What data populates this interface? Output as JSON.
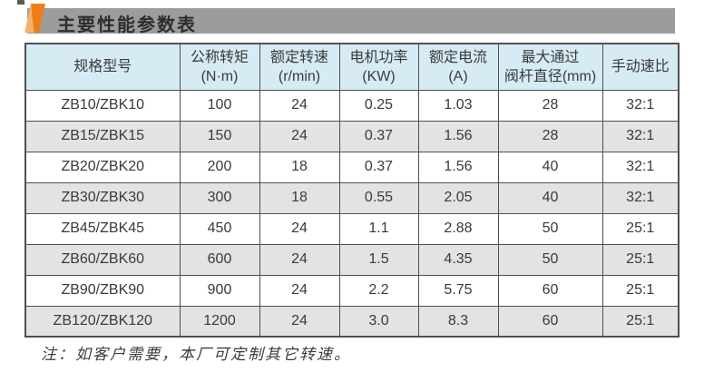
{
  "page": {
    "title": "主要性能参数表",
    "note": "注：如客户需要，本厂可定制其它转速。"
  },
  "colors": {
    "title_bar_gray": "#9c9c9c",
    "icon_orange": "#ee7f17",
    "icon_light_orange": "#f6b069",
    "header_blue": "#d6ebf4",
    "row_alt_gray": "#e3e3e3",
    "table_border": "#4f4f4f",
    "text_dark": "#3a3a3a"
  },
  "table": {
    "columns": [
      {
        "label": "规格型号",
        "unit": ""
      },
      {
        "label": "公称转矩",
        "unit": "(N·m)"
      },
      {
        "label": "额定转速",
        "unit": "(r/min)"
      },
      {
        "label": "电机功率",
        "unit": "(KW)"
      },
      {
        "label": "额定电流",
        "unit": "(A)"
      },
      {
        "label": "最大通过",
        "unit": "阀杆直径(mm)"
      },
      {
        "label": "手动速比",
        "unit": ""
      }
    ],
    "rows": [
      [
        "ZB10/ZBK10",
        "100",
        "24",
        "0.25",
        "1.03",
        "28",
        "32:1"
      ],
      [
        "ZB15/ZBK15",
        "150",
        "24",
        "0.37",
        "1.56",
        "28",
        "32:1"
      ],
      [
        "ZB20/ZBK20",
        "200",
        "18",
        "0.37",
        "1.56",
        "40",
        "32:1"
      ],
      [
        "ZB30/ZBK30",
        "300",
        "18",
        "0.55",
        "2.05",
        "40",
        "32:1"
      ],
      [
        "ZB45/ZBK45",
        "450",
        "24",
        "1.1",
        "2.88",
        "50",
        "25:1"
      ],
      [
        "ZB60/ZBK60",
        "600",
        "24",
        "1.5",
        "4.35",
        "50",
        "25:1"
      ],
      [
        "ZB90/ZBK90",
        "900",
        "24",
        "2.2",
        "5.75",
        "60",
        "25:1"
      ],
      [
        "ZB120/ZBK120",
        "1200",
        "24",
        "3.0",
        "8.3",
        "60",
        "25:1"
      ]
    ]
  }
}
